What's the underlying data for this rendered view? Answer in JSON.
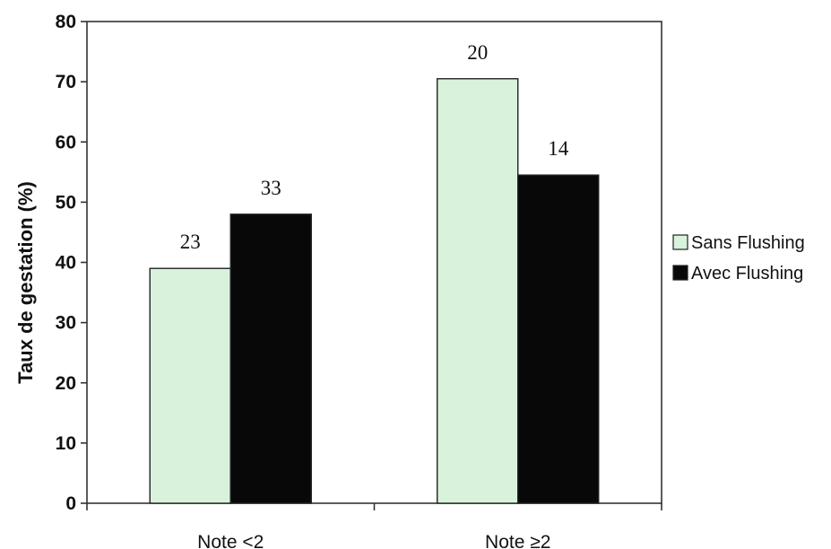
{
  "chart_data": {
    "type": "bar",
    "categories": [
      "Note <2",
      "Note ≥2"
    ],
    "series": [
      {
        "name": "Sans Flushing",
        "values": [
          39,
          70.5
        ],
        "labels": [
          "23",
          "20"
        ],
        "color": "#d8f2dc"
      },
      {
        "name": "Avec Flushing",
        "values": [
          48,
          54.5
        ],
        "labels": [
          "33",
          "14"
        ],
        "color": "#080808"
      }
    ],
    "title": "",
    "xlabel": "",
    "ylabel": "Taux de gestation (%)",
    "ylim": [
      0,
      80
    ],
    "yticks": [
      "0",
      "10",
      "20",
      "30",
      "40",
      "50",
      "60",
      "70",
      "80"
    ],
    "grid": false,
    "legend_position": "right"
  }
}
